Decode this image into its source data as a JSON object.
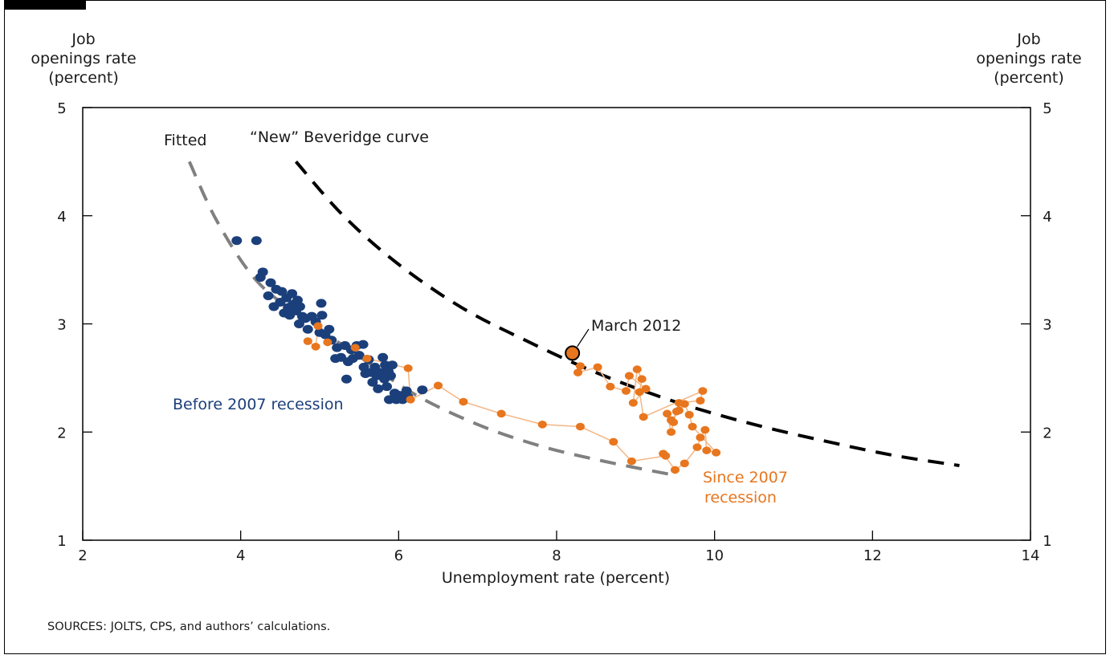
{
  "chart_data": {
    "type": "scatter",
    "xlabel": "Unemployment rate (percent)",
    "ylabel_left": [
      "Job",
      "openings rate",
      "(percent)"
    ],
    "ylabel_right": [
      "Job",
      "openings rate",
      "(percent)"
    ],
    "xlim": [
      2,
      14
    ],
    "ylim": [
      1,
      5
    ],
    "x_ticks": [
      2,
      4,
      6,
      8,
      10,
      12,
      14
    ],
    "y_ticks": [
      1,
      2,
      3,
      4,
      5
    ],
    "grid": false,
    "colors": {
      "before": "#1b3f7a",
      "since": "#e8761e",
      "since_line": "#f3b98a",
      "fitted": "#808080",
      "new_curve": "#000000"
    },
    "curves": [
      {
        "name": "Fitted",
        "style": "dashed-gray",
        "points": [
          [
            3.35,
            4.5
          ],
          [
            3.7,
            3.95
          ],
          [
            4.2,
            3.4
          ],
          [
            4.8,
            3.05
          ],
          [
            5.5,
            2.7
          ],
          [
            6.2,
            2.35
          ],
          [
            7.0,
            2.07
          ],
          [
            7.8,
            1.87
          ],
          [
            8.6,
            1.73
          ],
          [
            9.5,
            1.6
          ]
        ]
      },
      {
        "name": "“New” Beveridge curve",
        "style": "dashed-black",
        "points": [
          [
            4.7,
            4.5
          ],
          [
            5.3,
            4.0
          ],
          [
            6.0,
            3.55
          ],
          [
            6.8,
            3.15
          ],
          [
            7.6,
            2.85
          ],
          [
            8.5,
            2.55
          ],
          [
            9.5,
            2.28
          ],
          [
            10.5,
            2.07
          ],
          [
            11.5,
            1.9
          ],
          [
            12.3,
            1.78
          ],
          [
            13.1,
            1.69
          ]
        ]
      }
    ],
    "series": [
      {
        "name": "Before 2007 recession",
        "points": [
          [
            3.95,
            3.77
          ],
          [
            4.2,
            3.77
          ],
          [
            4.25,
            3.43
          ],
          [
            4.28,
            3.48
          ],
          [
            4.38,
            3.38
          ],
          [
            4.35,
            3.26
          ],
          [
            4.45,
            3.32
          ],
          [
            4.42,
            3.16
          ],
          [
            4.5,
            3.2
          ],
          [
            4.52,
            3.3
          ],
          [
            4.55,
            3.1
          ],
          [
            4.58,
            3.24
          ],
          [
            4.6,
            3.15
          ],
          [
            4.62,
            3.08
          ],
          [
            4.65,
            3.28
          ],
          [
            4.66,
            3.18
          ],
          [
            4.7,
            3.12
          ],
          [
            4.72,
            3.22
          ],
          [
            4.74,
            3.0
          ],
          [
            4.75,
            3.16
          ],
          [
            4.78,
            3.07
          ],
          [
            4.82,
            3.05
          ],
          [
            4.85,
            2.95
          ],
          [
            4.9,
            3.07
          ],
          [
            4.95,
            3.02
          ],
          [
            5.0,
            2.92
          ],
          [
            5.02,
            3.19
          ],
          [
            5.03,
            3.08
          ],
          [
            5.07,
            2.9
          ],
          [
            5.12,
            2.95
          ],
          [
            5.15,
            2.85
          ],
          [
            5.2,
            2.68
          ],
          [
            5.22,
            2.78
          ],
          [
            5.27,
            2.69
          ],
          [
            5.32,
            2.8
          ],
          [
            5.34,
            2.49
          ],
          [
            5.36,
            2.65
          ],
          [
            5.4,
            2.76
          ],
          [
            5.42,
            2.68
          ],
          [
            5.47,
            2.8
          ],
          [
            5.5,
            2.71
          ],
          [
            5.55,
            2.81
          ],
          [
            5.56,
            2.6
          ],
          [
            5.58,
            2.54
          ],
          [
            5.62,
            2.67
          ],
          [
            5.65,
            2.55
          ],
          [
            5.67,
            2.46
          ],
          [
            5.7,
            2.6
          ],
          [
            5.72,
            2.52
          ],
          [
            5.74,
            2.4
          ],
          [
            5.77,
            2.55
          ],
          [
            5.8,
            2.69
          ],
          [
            5.82,
            2.49
          ],
          [
            5.83,
            2.62
          ],
          [
            5.85,
            2.42
          ],
          [
            5.87,
            2.56
          ],
          [
            5.88,
            2.3
          ],
          [
            5.9,
            2.52
          ],
          [
            5.92,
            2.62
          ],
          [
            5.95,
            2.36
          ],
          [
            5.97,
            2.3
          ],
          [
            6.0,
            2.34
          ],
          [
            6.05,
            2.3
          ],
          [
            6.1,
            2.38
          ],
          [
            6.12,
            2.32
          ],
          [
            6.3,
            2.39
          ]
        ]
      },
      {
        "name": "Since 2007 recession",
        "points": [
          [
            4.85,
            2.84
          ],
          [
            4.95,
            2.79
          ],
          [
            4.98,
            2.98
          ],
          [
            5.1,
            2.83
          ],
          [
            5.45,
            2.78
          ],
          [
            5.6,
            2.68
          ],
          [
            6.12,
            2.59
          ],
          [
            6.15,
            2.3
          ],
          [
            6.5,
            2.43
          ],
          [
            6.82,
            2.28
          ],
          [
            7.3,
            2.17
          ],
          [
            7.82,
            2.07
          ],
          [
            8.3,
            2.05
          ],
          [
            8.72,
            1.91
          ],
          [
            8.95,
            1.73
          ],
          [
            9.38,
            1.78
          ],
          [
            9.35,
            1.8
          ],
          [
            9.5,
            1.65
          ],
          [
            9.62,
            1.71
          ],
          [
            9.78,
            1.86
          ],
          [
            9.82,
            1.95
          ],
          [
            9.88,
            2.02
          ],
          [
            9.9,
            1.83
          ],
          [
            10.02,
            1.81
          ],
          [
            9.72,
            2.05
          ],
          [
            9.68,
            2.16
          ],
          [
            9.62,
            2.26
          ],
          [
            9.55,
            2.2
          ],
          [
            9.45,
            2.11
          ],
          [
            9.4,
            2.17
          ],
          [
            9.45,
            2.0
          ],
          [
            9.48,
            2.09
          ],
          [
            9.52,
            2.19
          ],
          [
            9.55,
            2.27
          ],
          [
            9.82,
            2.29
          ],
          [
            9.85,
            2.38
          ],
          [
            9.1,
            2.14
          ],
          [
            9.05,
            2.37
          ],
          [
            9.08,
            2.49
          ],
          [
            9.02,
            2.58
          ],
          [
            8.97,
            2.27
          ],
          [
            9.13,
            2.4
          ],
          [
            8.92,
            2.52
          ],
          [
            8.88,
            2.38
          ],
          [
            8.68,
            2.42
          ],
          [
            8.52,
            2.6
          ],
          [
            8.27,
            2.55
          ],
          [
            8.3,
            2.61
          ]
        ]
      }
    ],
    "highlight": {
      "label": "March 2012",
      "x": 8.2,
      "y": 2.73
    },
    "annotations": {
      "fitted": "Fitted",
      "new_curve": "“New” Beveridge curve",
      "before": "Before 2007 recession",
      "since_line1": "Since 2007",
      "since_line2": "recession"
    }
  },
  "source_note": "SOURCES:  JOLTS, CPS, and authors’ calculations."
}
